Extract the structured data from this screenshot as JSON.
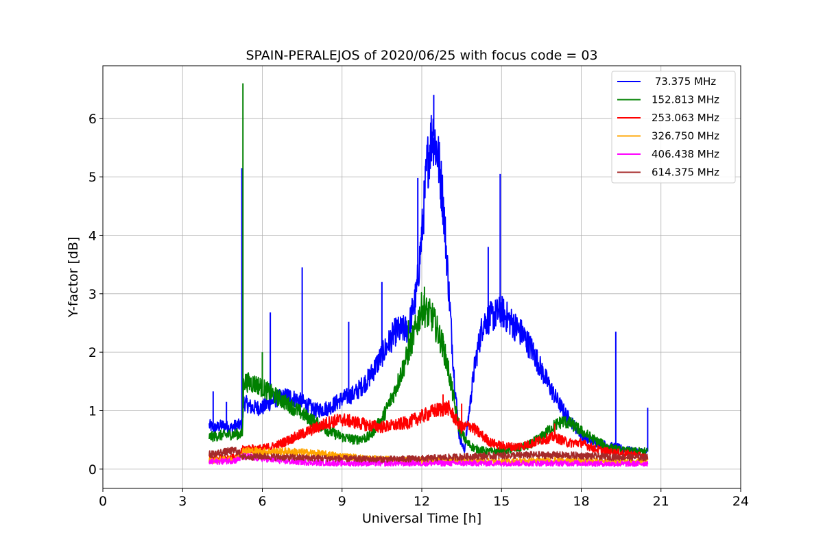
{
  "chart_data": {
    "type": "line",
    "title": "SPAIN-PERALEJOS of 2020/06/25 with focus code = 03",
    "xlabel": "Universal Time [h]",
    "ylabel": "Y-factor [dB]",
    "xlim": [
      0,
      24
    ],
    "ylim": [
      -0.33,
      6.9
    ],
    "xticks": [
      0,
      3,
      6,
      9,
      12,
      15,
      18,
      21,
      24
    ],
    "yticks": [
      0,
      1,
      2,
      3,
      4,
      5,
      6
    ],
    "grid": true,
    "legend_position": "top-right",
    "series": [
      {
        "name": " 73.375 MHz",
        "color": "#0000ff",
        "x": [
          4.0,
          4.2,
          4.5,
          4.8,
          5.0,
          5.25,
          5.3,
          5.6,
          6.0,
          6.5,
          7.0,
          7.5,
          8.0,
          8.5,
          9.0,
          9.5,
          10.0,
          10.5,
          11.0,
          11.5,
          11.8,
          12.0,
          12.2,
          12.4,
          12.6,
          12.8,
          13.0,
          13.2,
          13.4,
          13.6,
          14.0,
          14.3,
          14.6,
          15.0,
          15.4,
          15.8,
          16.2,
          16.6,
          17.0,
          17.4,
          17.8,
          18.2,
          18.6,
          19.0,
          19.5,
          20.0,
          20.5
        ],
        "y": [
          0.75,
          0.7,
          0.75,
          0.7,
          0.75,
          0.75,
          1.15,
          1.05,
          1.05,
          1.2,
          1.25,
          1.15,
          1.0,
          1.05,
          1.2,
          1.3,
          1.55,
          1.95,
          2.35,
          2.4,
          3.0,
          4.0,
          5.2,
          5.8,
          5.4,
          4.6,
          3.2,
          1.7,
          0.6,
          0.3,
          1.8,
          2.5,
          2.6,
          2.7,
          2.5,
          2.3,
          2.0,
          1.6,
          1.25,
          0.95,
          0.7,
          0.5,
          0.45,
          0.4,
          0.35,
          0.3,
          0.3
        ],
        "spikes": [
          [
            4.15,
            1.33
          ],
          [
            4.65,
            1.15
          ],
          [
            5.23,
            5.15
          ],
          [
            6.3,
            2.68
          ],
          [
            7.5,
            3.45
          ],
          [
            9.25,
            2.52
          ],
          [
            10.5,
            3.2
          ],
          [
            11.85,
            4.98
          ],
          [
            12.45,
            6.4
          ],
          [
            14.5,
            3.8
          ],
          [
            14.95,
            5.05
          ],
          [
            19.3,
            2.35
          ],
          [
            20.5,
            1.05
          ]
        ]
      },
      {
        "name": "152.813 MHz",
        "color": "#008000",
        "x": [
          4.0,
          4.5,
          5.0,
          5.25,
          5.3,
          5.8,
          6.5,
          7.0,
          7.5,
          8.0,
          8.5,
          9.0,
          9.5,
          10.0,
          10.5,
          11.0,
          11.5,
          12.0,
          12.4,
          12.8,
          13.0,
          13.2,
          13.4,
          13.7,
          14.0,
          14.5,
          15.0,
          15.5,
          16.0,
          16.5,
          17.0,
          17.3,
          17.6,
          18.0,
          18.5,
          19.0,
          19.5,
          20.0,
          20.5
        ],
        "y": [
          0.55,
          0.58,
          0.6,
          0.6,
          1.5,
          1.45,
          1.25,
          1.1,
          0.95,
          0.8,
          0.65,
          0.55,
          0.5,
          0.55,
          0.85,
          1.35,
          2.0,
          2.75,
          2.6,
          2.1,
          1.7,
          1.2,
          0.7,
          0.45,
          0.35,
          0.3,
          0.3,
          0.35,
          0.4,
          0.55,
          0.75,
          0.82,
          0.78,
          0.65,
          0.5,
          0.38,
          0.32,
          0.3,
          0.3
        ],
        "spikes": [
          [
            5.27,
            6.6
          ],
          [
            6.0,
            2.0
          ],
          [
            11.5,
            2.55
          ],
          [
            12.1,
            3.12
          ]
        ]
      },
      {
        "name": "253.063 MHz",
        "color": "#ff0000",
        "x": [
          4.0,
          5.0,
          5.3,
          6.0,
          6.5,
          7.0,
          7.5,
          8.0,
          8.5,
          9.0,
          9.5,
          10.0,
          10.5,
          11.0,
          11.5,
          12.0,
          12.5,
          13.0,
          13.2,
          13.5,
          13.8,
          14.2,
          14.6,
          15.0,
          15.5,
          16.0,
          16.5,
          17.0,
          17.5,
          18.0,
          18.5,
          19.0,
          20.0,
          20.5
        ],
        "y": [
          0.2,
          0.2,
          0.35,
          0.35,
          0.4,
          0.5,
          0.6,
          0.7,
          0.8,
          0.85,
          0.8,
          0.75,
          0.72,
          0.75,
          0.8,
          0.9,
          1.0,
          1.05,
          0.9,
          0.7,
          0.75,
          0.6,
          0.45,
          0.4,
          0.38,
          0.42,
          0.5,
          0.55,
          0.45,
          0.45,
          0.35,
          0.3,
          0.25,
          0.2
        ],
        "spikes": [
          [
            12.8,
            1.28
          ],
          [
            13.5,
            1.12
          ],
          [
            17.0,
            0.78
          ]
        ]
      },
      {
        "name": "326.750 MHz",
        "color": "#ffa500",
        "x": [
          4.0,
          5.0,
          5.3,
          6.0,
          7.0,
          8.0,
          9.0,
          10.0,
          11.0,
          12.0,
          13.0,
          14.0,
          15.0,
          16.0,
          17.0,
          18.0,
          19.0,
          20.0,
          20.5
        ],
        "y": [
          0.15,
          0.17,
          0.32,
          0.3,
          0.3,
          0.27,
          0.22,
          0.18,
          0.16,
          0.15,
          0.15,
          0.14,
          0.13,
          0.14,
          0.15,
          0.14,
          0.13,
          0.12,
          0.15
        ],
        "spikes": []
      },
      {
        "name": "406.438 MHz",
        "color": "#ff00ff",
        "x": [
          4.0,
          5.0,
          5.3,
          6.0,
          7.0,
          8.0,
          9.0,
          10.0,
          11.0,
          12.0,
          13.0,
          14.0,
          15.0,
          16.0,
          17.0,
          18.0,
          19.0,
          20.0,
          20.5
        ],
        "y": [
          0.12,
          0.15,
          0.22,
          0.18,
          0.13,
          0.11,
          0.1,
          0.1,
          0.1,
          0.1,
          0.1,
          0.1,
          0.1,
          0.1,
          0.1,
          0.1,
          0.09,
          0.09,
          0.1
        ],
        "spikes": []
      },
      {
        "name": "614.375 MHz",
        "color": "#a52a2a",
        "x": [
          4.0,
          5.0,
          5.3,
          6.0,
          7.0,
          8.0,
          9.0,
          10.0,
          11.0,
          12.0,
          13.0,
          14.0,
          15.0,
          16.0,
          17.0,
          18.0,
          19.0,
          20.0,
          20.5
        ],
        "y": [
          0.25,
          0.32,
          0.2,
          0.22,
          0.2,
          0.19,
          0.18,
          0.17,
          0.17,
          0.18,
          0.2,
          0.22,
          0.23,
          0.24,
          0.24,
          0.23,
          0.21,
          0.2,
          0.2
        ],
        "spikes": []
      }
    ]
  }
}
